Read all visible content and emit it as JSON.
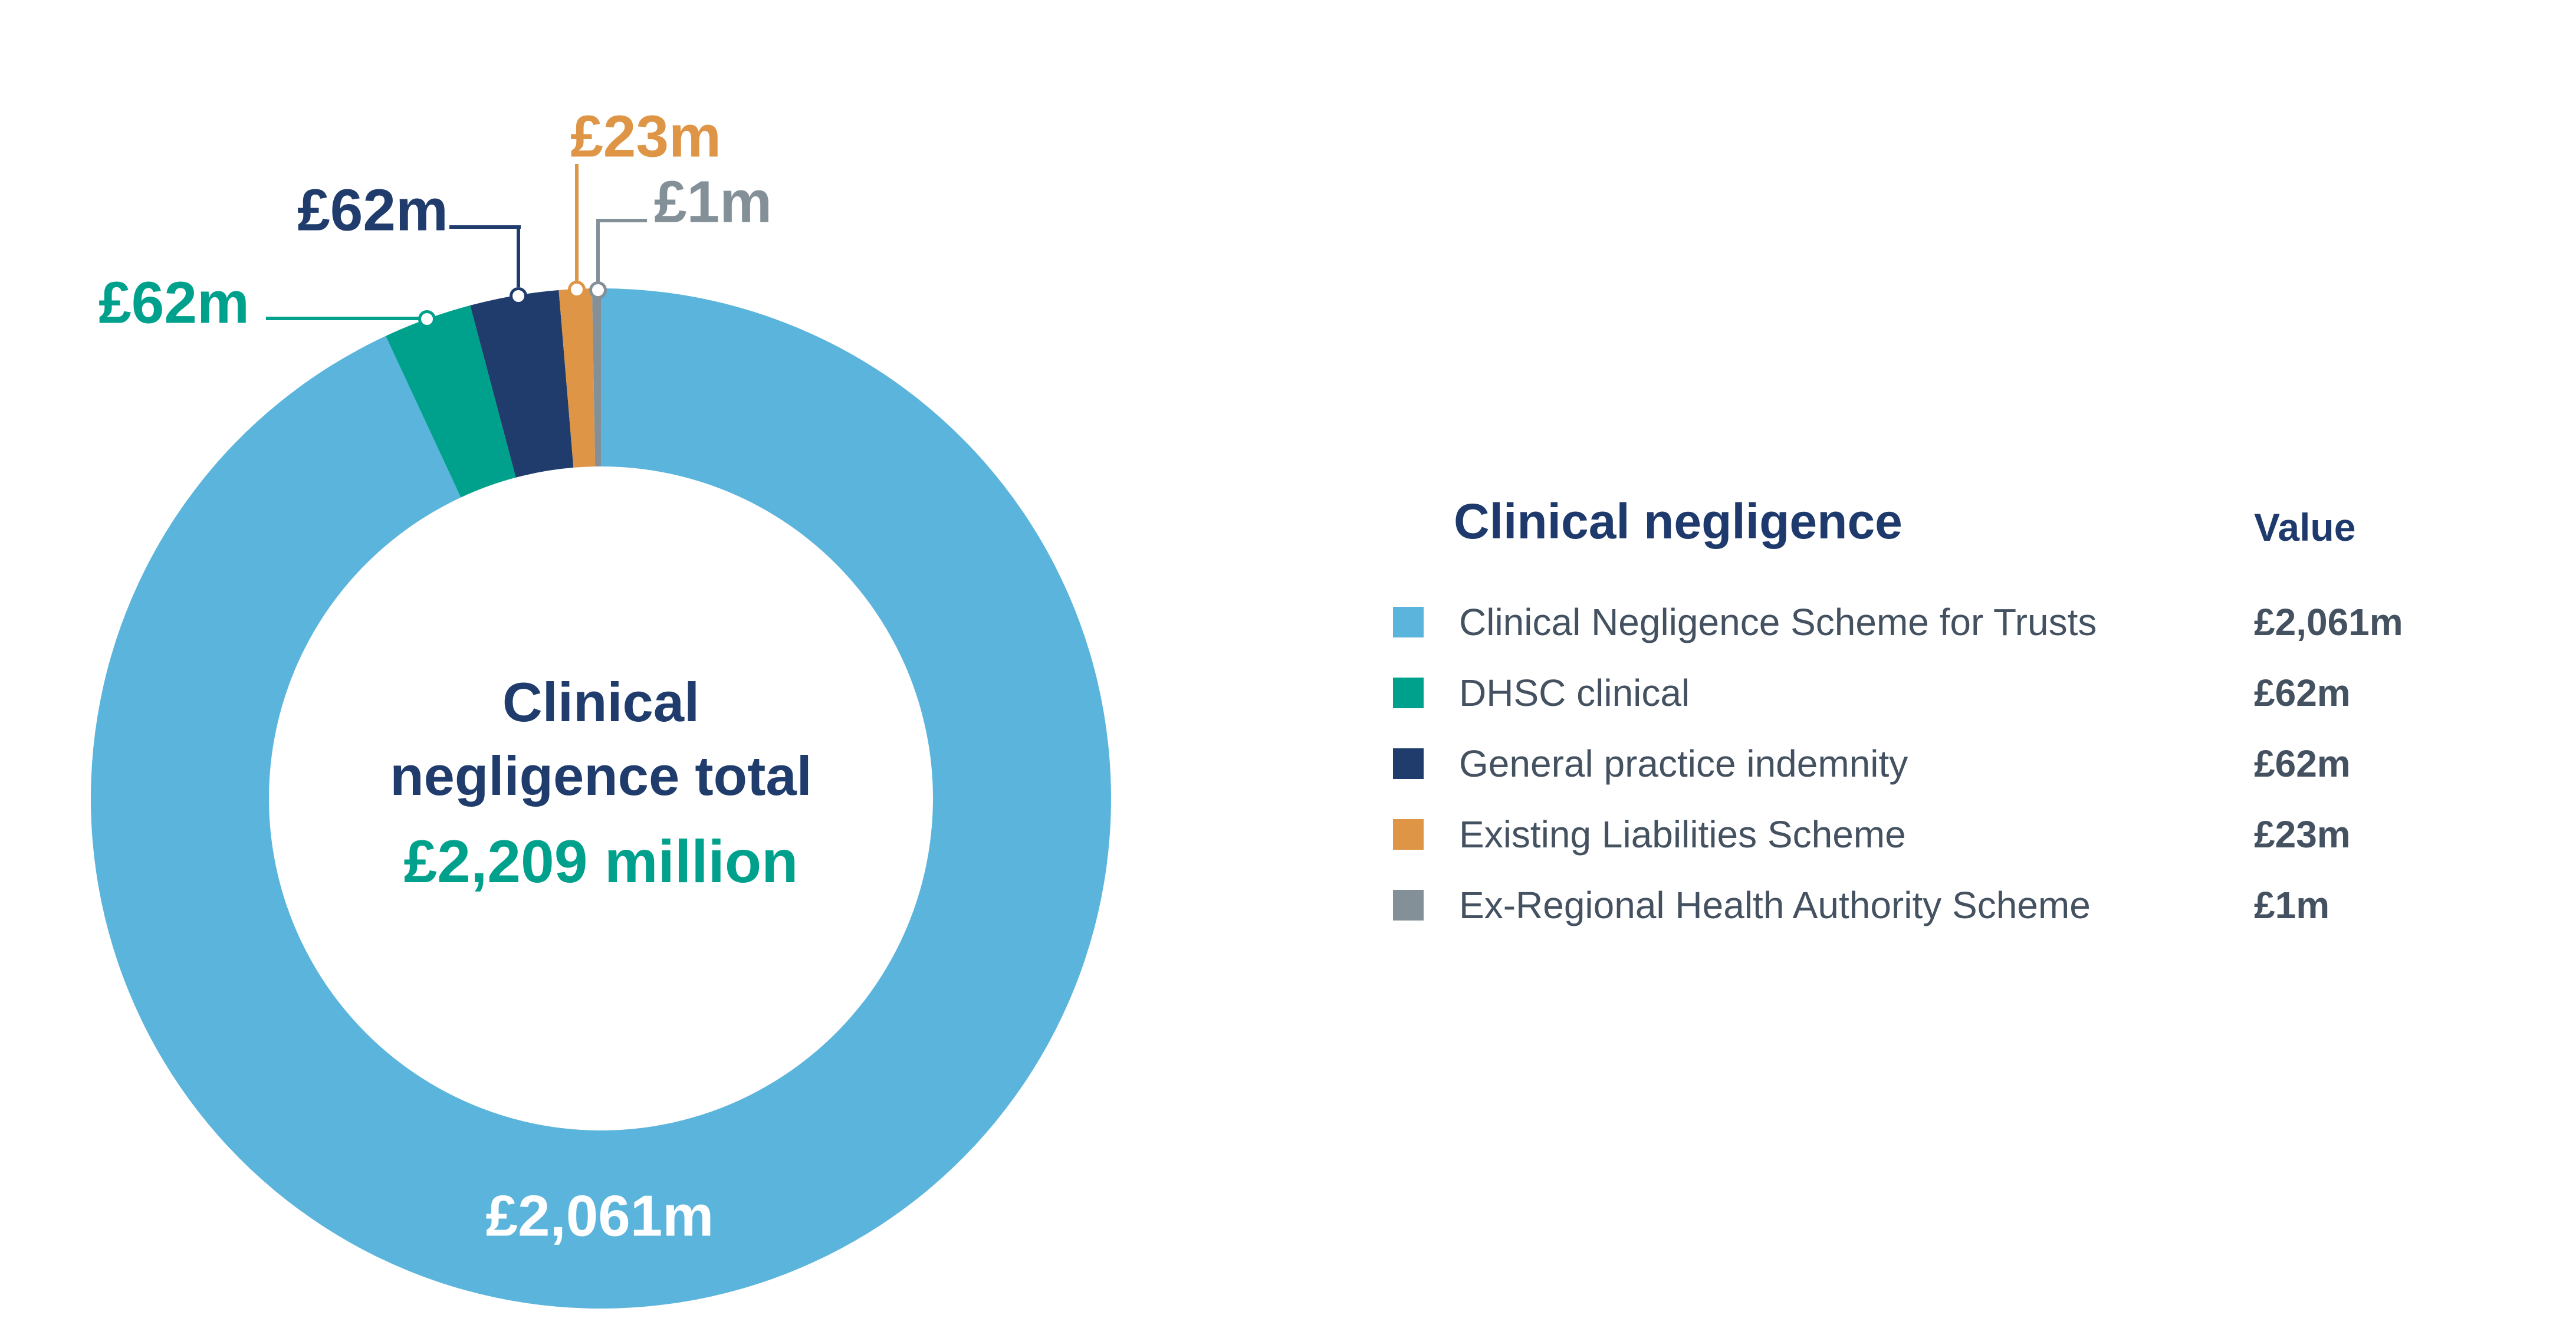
{
  "chart_data": {
    "type": "pie",
    "subtype": "donut",
    "title": "Clinical negligence",
    "units": "£ million",
    "total_millions": 2209,
    "legend_position": "right",
    "min_slice_display_deg": 1,
    "center_label": {
      "line1": "Clinical",
      "line2": "negligence total",
      "total_display": "£2,209 million"
    },
    "series": [
      {
        "name": "Clinical Negligence Scheme for Trusts",
        "value_millions": 2061,
        "display": "£2,061m",
        "color": "#5BB4DC"
      },
      {
        "name": "DHSC clinical",
        "value_millions": 62,
        "display": "£62m",
        "color": "#00A18C"
      },
      {
        "name": "General practice indemnity",
        "value_millions": 62,
        "display": "£62m",
        "color": "#1F3C6C"
      },
      {
        "name": "Existing Liabilities Scheme",
        "value_millions": 23,
        "display": "£23m",
        "color": "#DE9546"
      },
      {
        "name": "Ex-Regional Health Authority Scheme",
        "value_millions": 1,
        "display": "£1m",
        "color": "#839097"
      }
    ]
  },
  "legend": {
    "title": "Clinical negligence",
    "value_header": "Value"
  },
  "colors": {
    "background": "#FFFFFF",
    "title_navy": "#1E3A6D",
    "center_navy": "#1F3C6C",
    "total_teal": "#00A18C",
    "label_slate": "#445160",
    "inner_value_white": "#FFFFFF"
  }
}
